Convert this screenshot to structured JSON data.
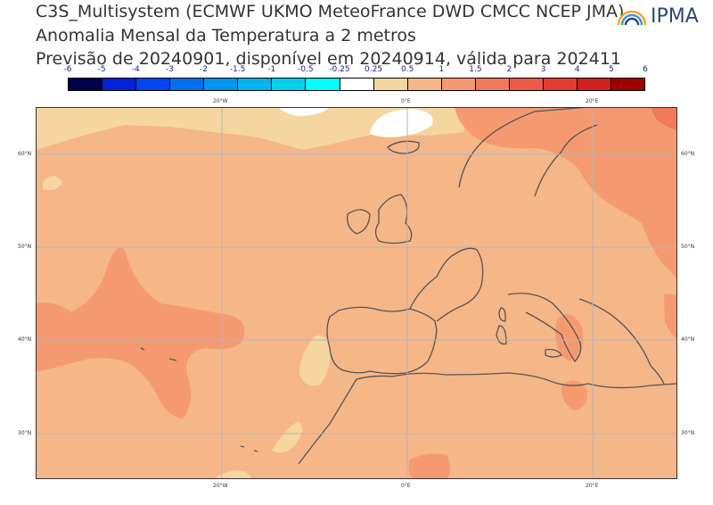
{
  "title": {
    "line1": "C3S_Multisystem (ECMWF UKMO MeteoFrance DWD CMCC NCEP JMA)",
    "line2": "Anomalia Mensal da Temperatura a 2 metros",
    "line3": "Previsão de 20240901, disponível em 20240914, válida para 202411"
  },
  "logo": {
    "text": "IPMA"
  },
  "colorbar": {
    "ticks": [
      "-6",
      "-5",
      "-4",
      "-3",
      "-2",
      "-1.5",
      "-1",
      "-0.5",
      "-0.25",
      "0.25",
      "0.5",
      "1",
      "1.5",
      "2",
      "3",
      "4",
      "5",
      "6"
    ],
    "colors": [
      "#00004c",
      "#0022d8",
      "#0046f0",
      "#0070f0",
      "#0095f0",
      "#00b5f0",
      "#00d0f0",
      "#00ffff",
      "#ffffff",
      "#f5d6a0",
      "#f5b688",
      "#f59a70",
      "#f07a5a",
      "#ec5a48",
      "#e43c30",
      "#d22020",
      "#a00000"
    ]
  },
  "map": {
    "lon_labels_top": [
      "20°W",
      "0°E",
      "20°E"
    ],
    "lon_labels_bottom": [
      "20°W",
      "0°E",
      "20°E"
    ],
    "lat_labels_left": [
      "60°N",
      "50°N",
      "40°N",
      "30°N"
    ],
    "lat_labels_right": [
      "60°N",
      "50°N",
      "40°N",
      "30°N"
    ],
    "colors": {
      "base": "#f5b688",
      "warm": "#f59a70",
      "warmer": "#f07a5a",
      "cool": "#f5d6a0",
      "neutral": "#ffffff",
      "grid": "#b5b5b5",
      "coast": "#555555"
    }
  }
}
